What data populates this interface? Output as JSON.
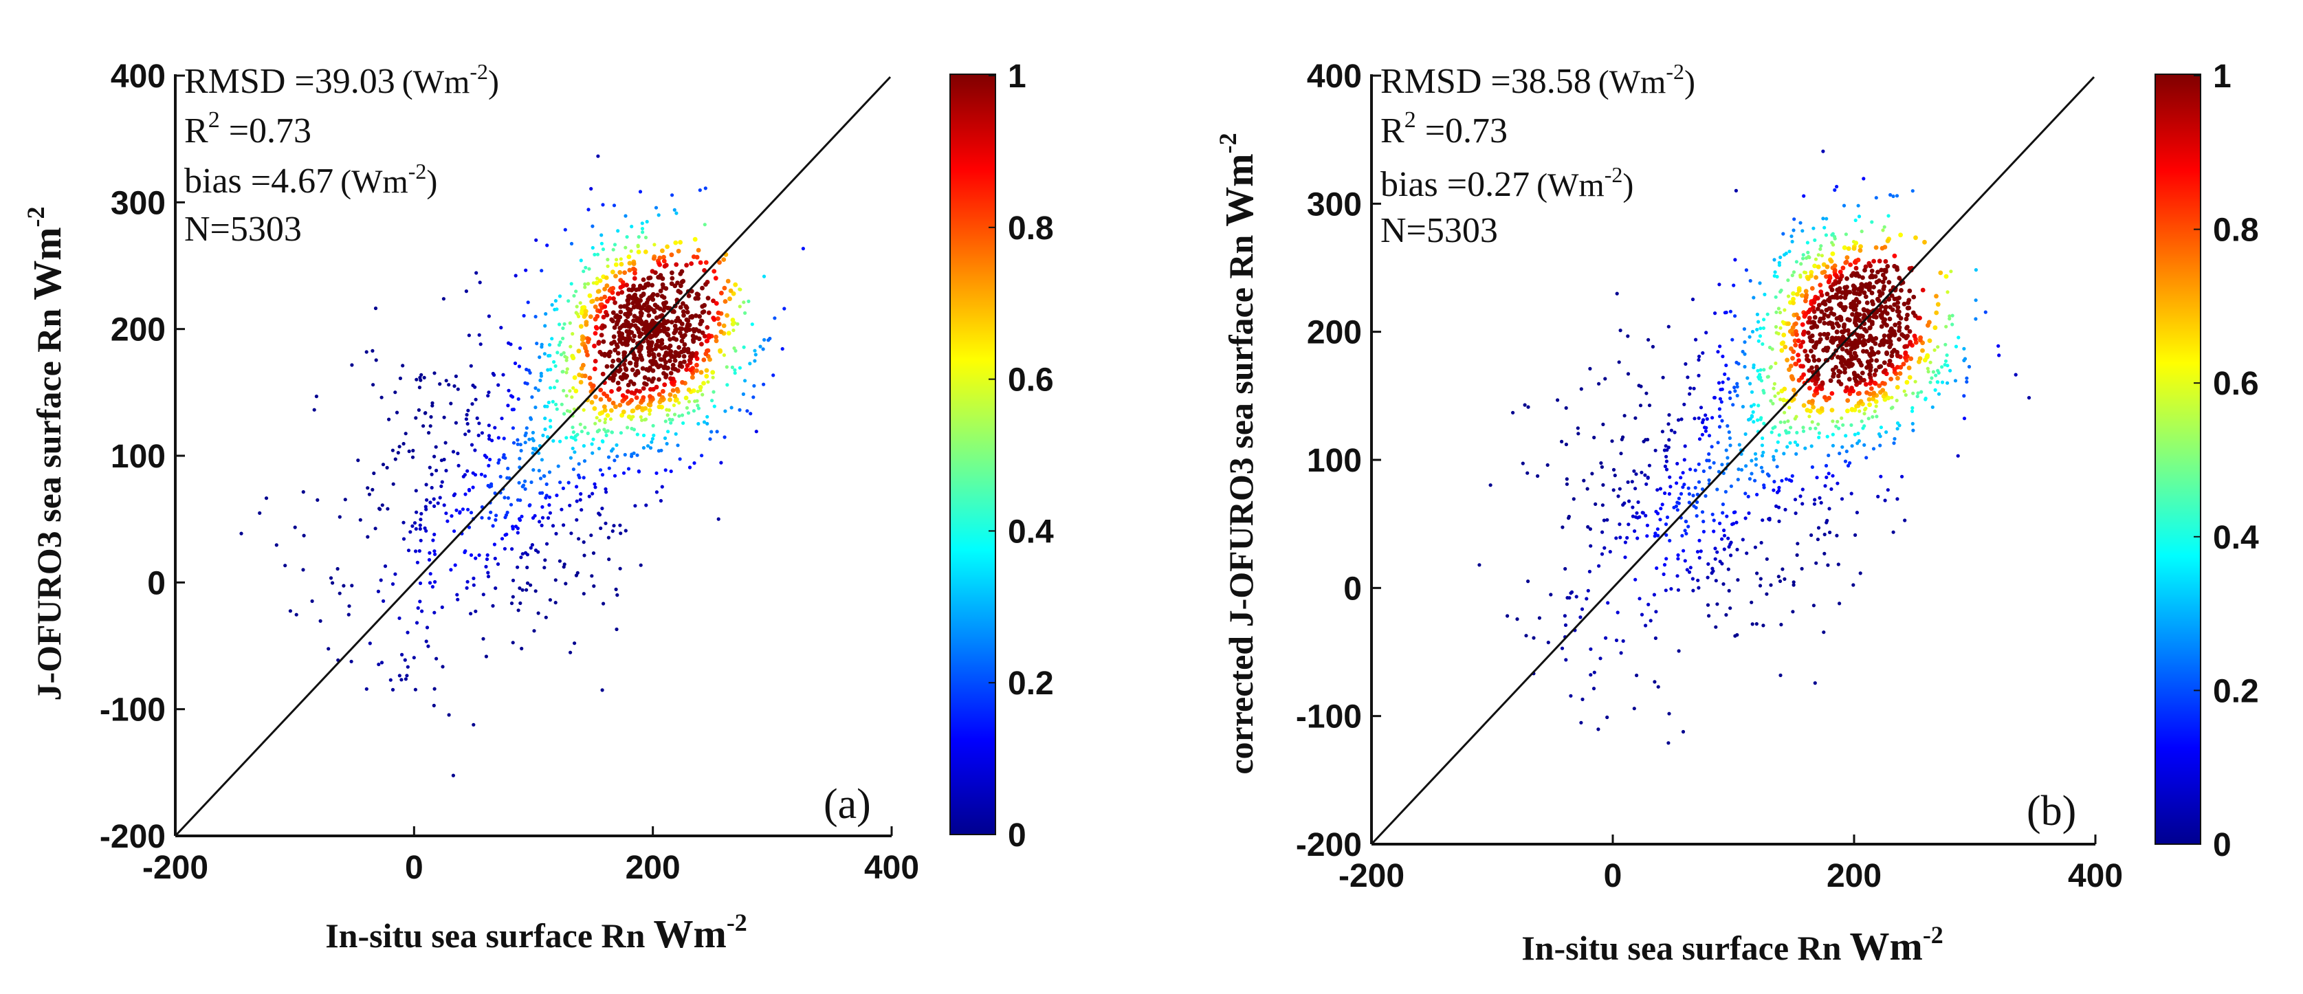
{
  "chart_data": [
    {
      "type": "scatter",
      "panel_label": "(a)",
      "xlabel": "In-situ sea surface Rn",
      "xlabel_unit": "Wm",
      "ylabel": "J-OFURO3 sea surface Rn",
      "ylabel_unit": "Wm",
      "unit_exponent": "-2",
      "xlim": [
        -200,
        400
      ],
      "ylim": [
        -200,
        400
      ],
      "x_ticks": [
        "-200",
        "0",
        "200",
        "400"
      ],
      "y_ticks": [
        "-200",
        "-100",
        "0",
        "100",
        "200",
        "300",
        "400"
      ],
      "stats": {
        "rmsd_label": "RMSD =",
        "rmsd": "39.03",
        "rmsd_unit": "(Wm",
        "r2_label": "R",
        "r2_sup": "2",
        "r2_value": " =0.73",
        "bias_label": "bias =",
        "bias": "4.67",
        "bias_unit": "(Wm",
        "n": "N=5303"
      },
      "one_to_one_line": true,
      "density_center": [
        200,
        200
      ],
      "spread": 60,
      "seed": 17,
      "points_count": 1600
    },
    {
      "type": "scatter",
      "panel_label": "(b)",
      "xlabel": "In-situ sea surface Rn",
      "xlabel_unit": "Wm",
      "ylabel": "corrected J-OFURO3 sea surface Rn",
      "ylabel_unit": "Wm",
      "unit_exponent": "-2",
      "xlim": [
        -200,
        400
      ],
      "ylim": [
        -200,
        400
      ],
      "x_ticks": [
        "-200",
        "0",
        "200",
        "400"
      ],
      "y_ticks": [
        "-200",
        "-100",
        "0",
        "100",
        "200",
        "300",
        "400"
      ],
      "stats": {
        "rmsd_label": "RMSD =",
        "rmsd": "38.58",
        "rmsd_unit": "(Wm",
        "r2_label": "R",
        "r2_sup": "2",
        "r2_value": " =0.73",
        "bias_label": "bias =",
        "bias": "0.27",
        "bias_unit": "(Wm",
        "n": "N=5303"
      },
      "one_to_one_line": true,
      "density_center": [
        205,
        205
      ],
      "spread": 60,
      "seed": 29,
      "points_count": 1600
    }
  ],
  "colorbar": {
    "range": [
      0,
      1
    ],
    "ticks": [
      "0",
      "0.2",
      "0.4",
      "0.6",
      "0.8",
      "1"
    ],
    "colormap": [
      "#00008f",
      "#0000ff",
      "#0080ff",
      "#00ffff",
      "#80ff80",
      "#ffff00",
      "#ff8000",
      "#ff0000",
      "#800000"
    ]
  }
}
